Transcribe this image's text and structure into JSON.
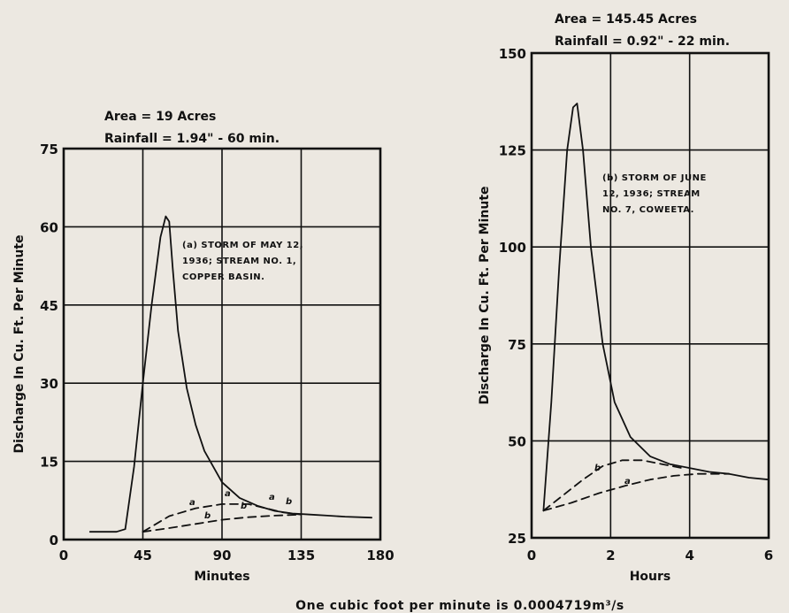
{
  "footer": "One cubic foot per minute is 0.0004719m³/s",
  "chart_data": [
    {
      "type": "line",
      "header_lines": [
        "Area = 19 Acres",
        "Rainfall = 1.94\" - 60 min."
      ],
      "annotation": [
        "(a) STORM OF MAY 12,",
        "1936; STREAM NO. 1,",
        "COPPER BASIN."
      ],
      "ylabel": "Discharge In Cu. Ft. Per Minute",
      "xlabel": "Minutes",
      "xlim": [
        0,
        180
      ],
      "ylim": [
        0,
        75
      ],
      "xticks": [
        0,
        45,
        90,
        135,
        180
      ],
      "yticks": [
        0,
        15,
        30,
        45,
        60,
        75
      ],
      "xtick_labels": [
        "0",
        "45",
        "90",
        "135",
        "180"
      ],
      "ytick_labels": [
        "0",
        "15",
        "30",
        "45",
        "60",
        "75"
      ],
      "grid": true,
      "curve_labels": [
        "a",
        "b",
        "a",
        "b",
        "a",
        "b"
      ],
      "series": [
        {
          "style": "solid",
          "x": [
            15,
            30,
            35,
            40,
            45,
            50,
            55,
            58,
            60,
            62,
            65,
            70,
            75,
            80,
            90,
            100,
            110,
            120,
            130,
            140,
            150,
            160,
            175
          ],
          "y": [
            1.5,
            1.5,
            2,
            14,
            30,
            45,
            58,
            62,
            61,
            52,
            40,
            29,
            22,
            17,
            11,
            8,
            6.5,
            5.5,
            5,
            4.8,
            4.6,
            4.4,
            4.2
          ]
        },
        {
          "style": "dashed",
          "x": [
            45,
            60,
            75,
            90,
            105,
            115,
            125,
            135
          ],
          "y": [
            1.5,
            4.5,
            6,
            6.8,
            6.8,
            6,
            5.2,
            4.8
          ]
        },
        {
          "style": "dashed",
          "x": [
            45,
            60,
            75,
            90,
            105,
            120,
            135
          ],
          "y": [
            1.5,
            2.2,
            3,
            3.8,
            4.3,
            4.6,
            4.8
          ]
        }
      ]
    },
    {
      "type": "line",
      "header_lines": [
        "Area = 145.45 Acres",
        "Rainfall = 0.92\" - 22 min."
      ],
      "annotation": [
        "(b) STORM OF JUNE",
        "12, 1936; STREAM",
        "NO. 7, COWEETA."
      ],
      "ylabel": "Discharge In Cu. Ft. Per Minute",
      "xlabel": "Hours",
      "xlim": [
        0,
        6
      ],
      "ylim": [
        25,
        150
      ],
      "xticks": [
        0,
        2,
        4,
        6
      ],
      "yticks": [
        25,
        50,
        75,
        100,
        125,
        150
      ],
      "xtick_labels": [
        "0",
        "2",
        "4",
        "6"
      ],
      "ytick_labels": [
        "25",
        "50",
        "75",
        "100",
        "125",
        "150"
      ],
      "grid": true,
      "curve_labels": [
        "b",
        "a"
      ],
      "series": [
        {
          "style": "solid",
          "x": [
            0.3,
            0.5,
            0.7,
            0.9,
            1.05,
            1.15,
            1.3,
            1.5,
            1.8,
            2.1,
            2.5,
            3.0,
            3.5,
            4.0,
            4.5,
            5.0,
            5.5,
            6.0
          ],
          "y": [
            32,
            60,
            95,
            125,
            136,
            137,
            125,
            100,
            75,
            60,
            51,
            46,
            44,
            43,
            42,
            41.5,
            40.5,
            40
          ]
        },
        {
          "style": "dashed",
          "x": [
            0.3,
            0.8,
            1.3,
            1.8,
            2.3,
            2.8,
            3.3,
            3.8
          ],
          "y": [
            32,
            36,
            40,
            43.5,
            45,
            45,
            44,
            43
          ]
        },
        {
          "style": "dashed",
          "x": [
            0.3,
            1.0,
            1.7,
            2.4,
            3.0,
            3.6,
            4.2,
            5.0
          ],
          "y": [
            32,
            34,
            36.5,
            38.5,
            40,
            41,
            41.5,
            41.5
          ]
        }
      ]
    }
  ]
}
